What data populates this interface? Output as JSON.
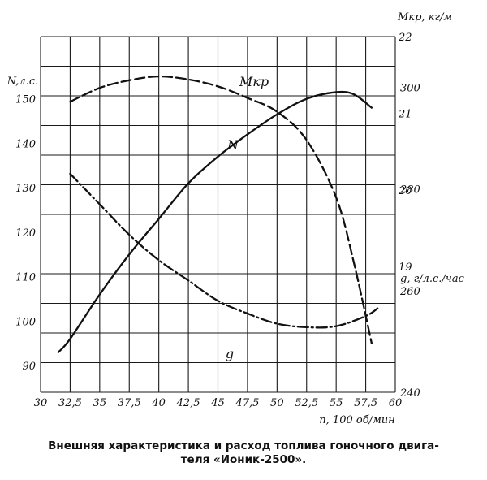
{
  "chart_data": {
    "type": "line",
    "x": {
      "label": "n, 100 об/мин",
      "range": [
        30,
        60
      ],
      "ticks": [
        30,
        32.5,
        35,
        37.5,
        40,
        42.5,
        45,
        47.5,
        50,
        52.5,
        55,
        57.5,
        60
      ],
      "tick_labels": [
        "30",
        "32,5",
        "35",
        "37,5",
        "40",
        "42,5",
        "45",
        "47,5",
        "50",
        "52,5",
        "55",
        "57,5",
        "60"
      ]
    },
    "axes": {
      "N": {
        "label": "N,л.с.",
        "side": "left",
        "range": [
          84,
          164
        ],
        "ticks": [
          90,
          100,
          110,
          120,
          130,
          140,
          150
        ],
        "tick_labels": [
          "90",
          "100",
          "110",
          "120",
          "130",
          "140",
          "150"
        ]
      },
      "M": {
        "label": "Мкр, кг/м",
        "side": "right",
        "range": [
          17.36,
          22
        ],
        "ticks": [
          19,
          20,
          21,
          22
        ],
        "tick_labels": [
          "19",
          "20",
          "21",
          "22"
        ]
      },
      "g": {
        "label": "g, г/л.с./час",
        "side": "right",
        "range": [
          240,
          310
        ],
        "ticks": [
          240,
          260,
          280,
          300
        ],
        "tick_labels": [
          "240",
          "260",
          "280",
          "300"
        ]
      }
    },
    "series": [
      {
        "name": "N",
        "axis": "N",
        "style": "solid",
        "points": [
          [
            31.5,
            93
          ],
          [
            32.5,
            96
          ],
          [
            35,
            106
          ],
          [
            37.5,
            115
          ],
          [
            40,
            123
          ],
          [
            42.5,
            131
          ],
          [
            45,
            137
          ],
          [
            47.5,
            142
          ],
          [
            50,
            146.5
          ],
          [
            52.5,
            150
          ],
          [
            55,
            151.5
          ],
          [
            56.5,
            151
          ],
          [
            58,
            148
          ]
        ]
      },
      {
        "name": "Мкр",
        "axis": "M",
        "style": "dashed",
        "points": [
          [
            32.5,
            21.15
          ],
          [
            35,
            21.33
          ],
          [
            37.5,
            21.43
          ],
          [
            40,
            21.48
          ],
          [
            42.5,
            21.44
          ],
          [
            45,
            21.35
          ],
          [
            47.5,
            21.2
          ],
          [
            50,
            21.02
          ],
          [
            52.5,
            20.65
          ],
          [
            55,
            19.9
          ],
          [
            56.5,
            19.05
          ],
          [
            58,
            18.0
          ]
        ]
      },
      {
        "name": "g",
        "axis": "g",
        "style": "dashdot",
        "points": [
          [
            32.5,
            283
          ],
          [
            35,
            277
          ],
          [
            37.5,
            271
          ],
          [
            40,
            266
          ],
          [
            42.5,
            262
          ],
          [
            45,
            258
          ],
          [
            47.5,
            255.5
          ],
          [
            50,
            253.5
          ],
          [
            52.5,
            252.8
          ],
          [
            55,
            253
          ],
          [
            57.5,
            255
          ],
          [
            58.5,
            256.5
          ]
        ]
      }
    ],
    "grid": true
  },
  "caption": {
    "line1": "Внешняя характеристика и расход топлива гоночного двига-",
    "line2": "теля «Ионик-2500»."
  }
}
